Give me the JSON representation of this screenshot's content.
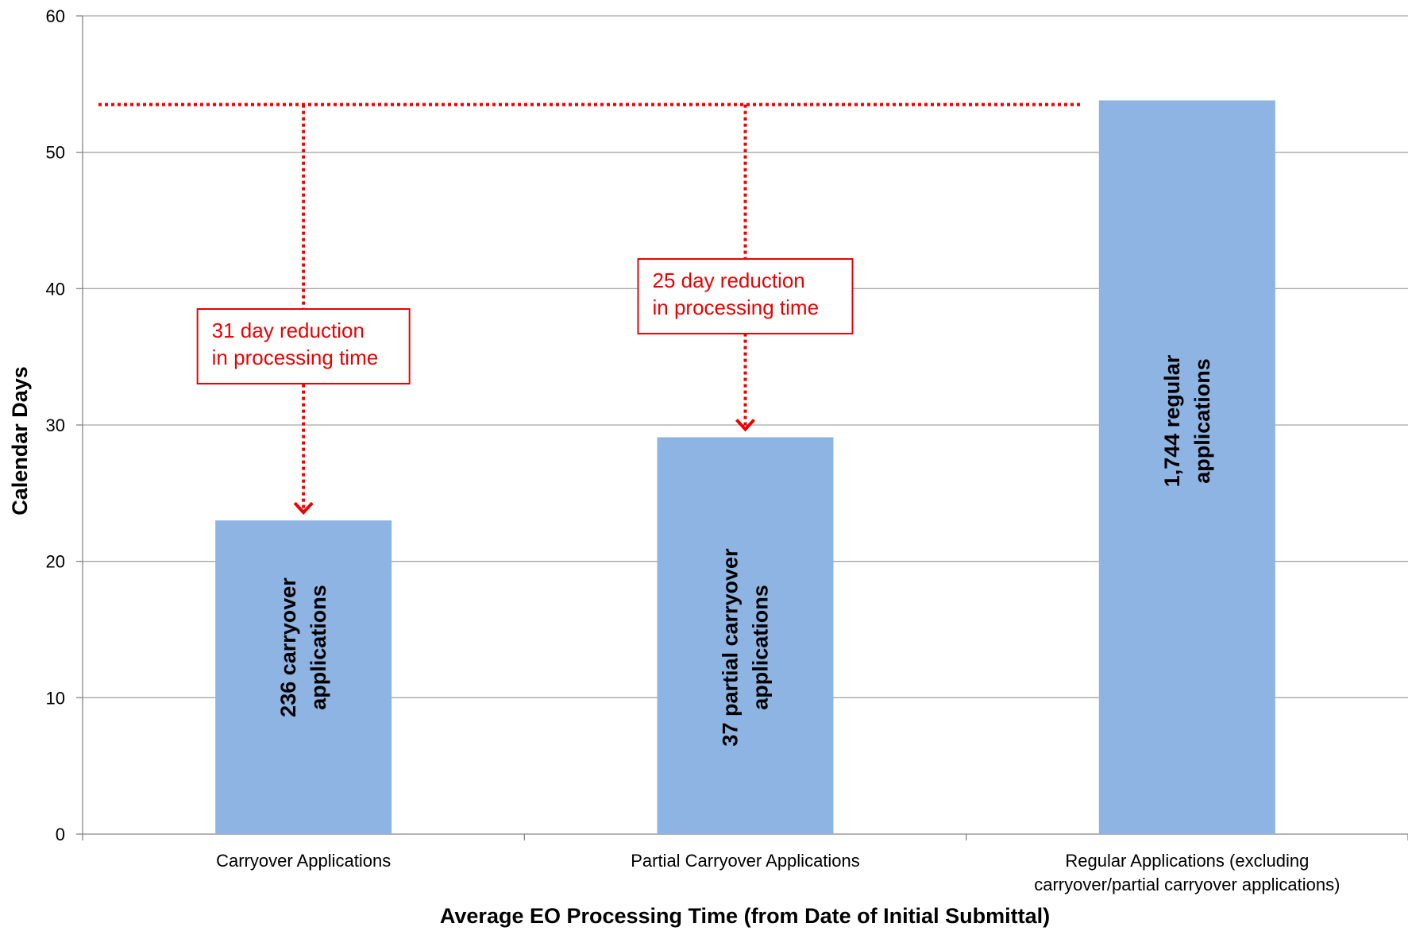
{
  "chart_data": {
    "type": "bar",
    "title": "",
    "xlabel": "Average EO Processing Time (from Date of Initial Submittal)",
    "ylabel": "Calendar Days",
    "ylim": [
      0,
      60
    ],
    "yticks": [
      0,
      10,
      20,
      30,
      40,
      50,
      60
    ],
    "grid": true,
    "categories": [
      [
        "Carryover Applications"
      ],
      [
        "Partial Carryover Applications"
      ],
      [
        "Regular Applications (excluding",
        "carryover/partial carryover applications)"
      ]
    ],
    "values": [
      23,
      29.1,
      53.8
    ],
    "bar_labels": [
      [
        "236 carryover",
        "applications"
      ],
      [
        "37 partial carryover",
        "applications"
      ],
      [
        "1,744 regular",
        "applications"
      ]
    ],
    "reference_line": {
      "value": 53.5,
      "style": "dotted",
      "color": "#ee0000"
    },
    "annotations": [
      {
        "category_index": 0,
        "lines": [
          "31 day reduction",
          "in processing time"
        ],
        "from": 53.5,
        "to": 23
      },
      {
        "category_index": 1,
        "lines": [
          "25 day reduction",
          "in processing time"
        ],
        "from": 53.5,
        "to": 29.1
      }
    ],
    "colors": {
      "bar": "#8eb4e3",
      "annotation": "#ee0000",
      "grid": "#a6a6a6",
      "axis": "#868686"
    }
  }
}
